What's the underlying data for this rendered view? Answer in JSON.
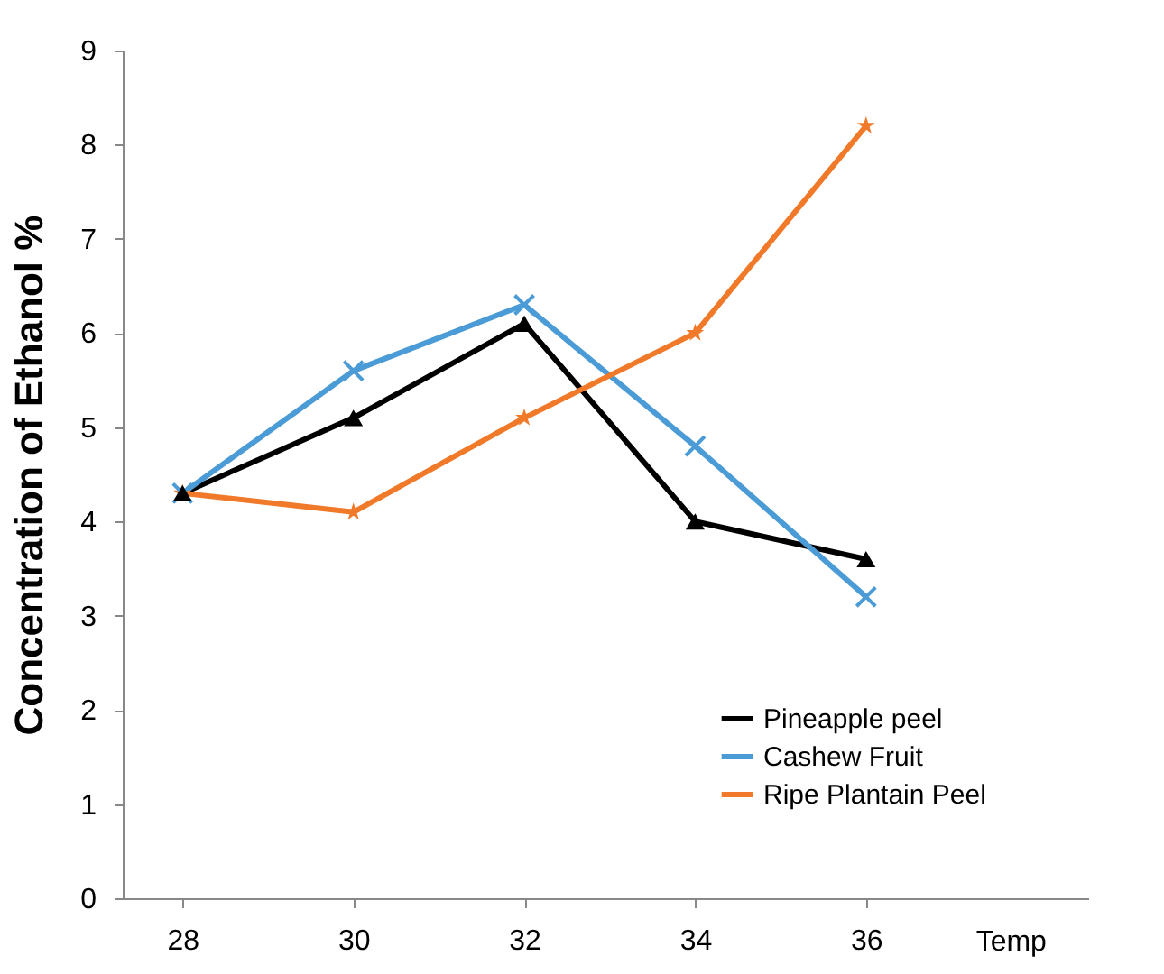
{
  "chart_data": {
    "type": "line",
    "xlabel": "Temp",
    "ylabel": "Concentration of Ethanol %",
    "x": [
      28,
      30,
      32,
      34,
      36
    ],
    "xlim": [
      27.3,
      38.6
    ],
    "xticks": [
      28,
      30,
      32,
      34,
      36
    ],
    "ylim": [
      0,
      9
    ],
    "yticks": [
      0,
      1,
      2,
      3,
      4,
      5,
      6,
      7,
      8,
      9
    ],
    "grid": false,
    "legend": "bottom right",
    "series": [
      {
        "name": "Pineapple peel",
        "color": "#000000",
        "marker": "triangle",
        "values": [
          4.3,
          5.1,
          6.1,
          4.0,
          3.6
        ]
      },
      {
        "name": "Cashew Fruit",
        "color": "#4a9bd6",
        "marker": "cross",
        "values": [
          4.3,
          5.6,
          6.3,
          4.8,
          3.2
        ]
      },
      {
        "name": "Ripe Plantain Peel",
        "color": "#f07a2a",
        "marker": "star",
        "values": [
          4.3,
          4.1,
          5.1,
          6.0,
          8.2
        ]
      }
    ]
  }
}
